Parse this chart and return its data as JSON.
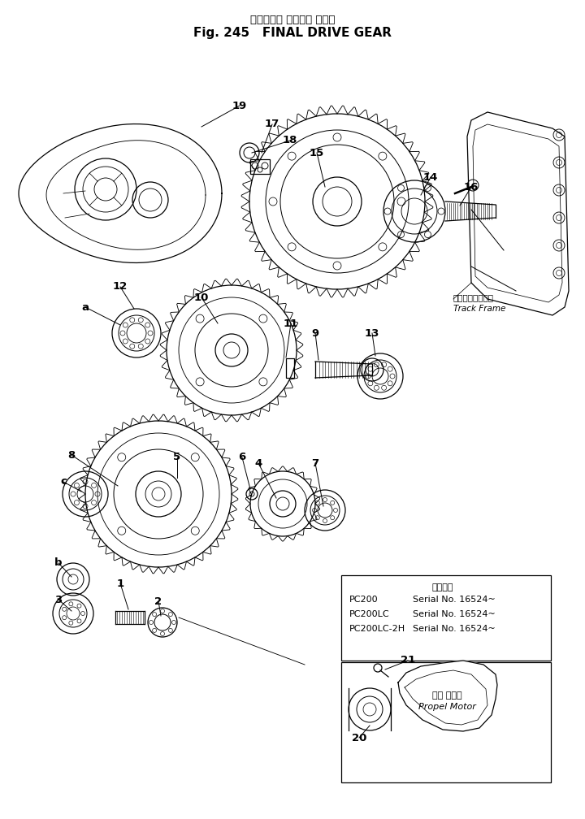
{
  "title_japanese": "ファイナル ドライブ ギヤー",
  "title_english": "Fig. 245   FINAL DRIVE GEAR",
  "bg_color": "#ffffff",
  "line_color": "#000000",
  "fig_width": 7.2,
  "fig_height": 10.08,
  "serial_lines": [
    [
      "PC200",
      "Serial No. 16524~"
    ],
    [
      "PC200LC",
      "Serial No. 16524~"
    ],
    [
      "PC200LC-2H",
      "Serial No. 16524~"
    ]
  ],
  "serial_header": "適用号標",
  "track_frame_jp": "トラックフレーム",
  "track_frame_en": "Track Frame",
  "propel_motor_jp": "走行 モータ",
  "propel_motor_en": "Propel Motor"
}
